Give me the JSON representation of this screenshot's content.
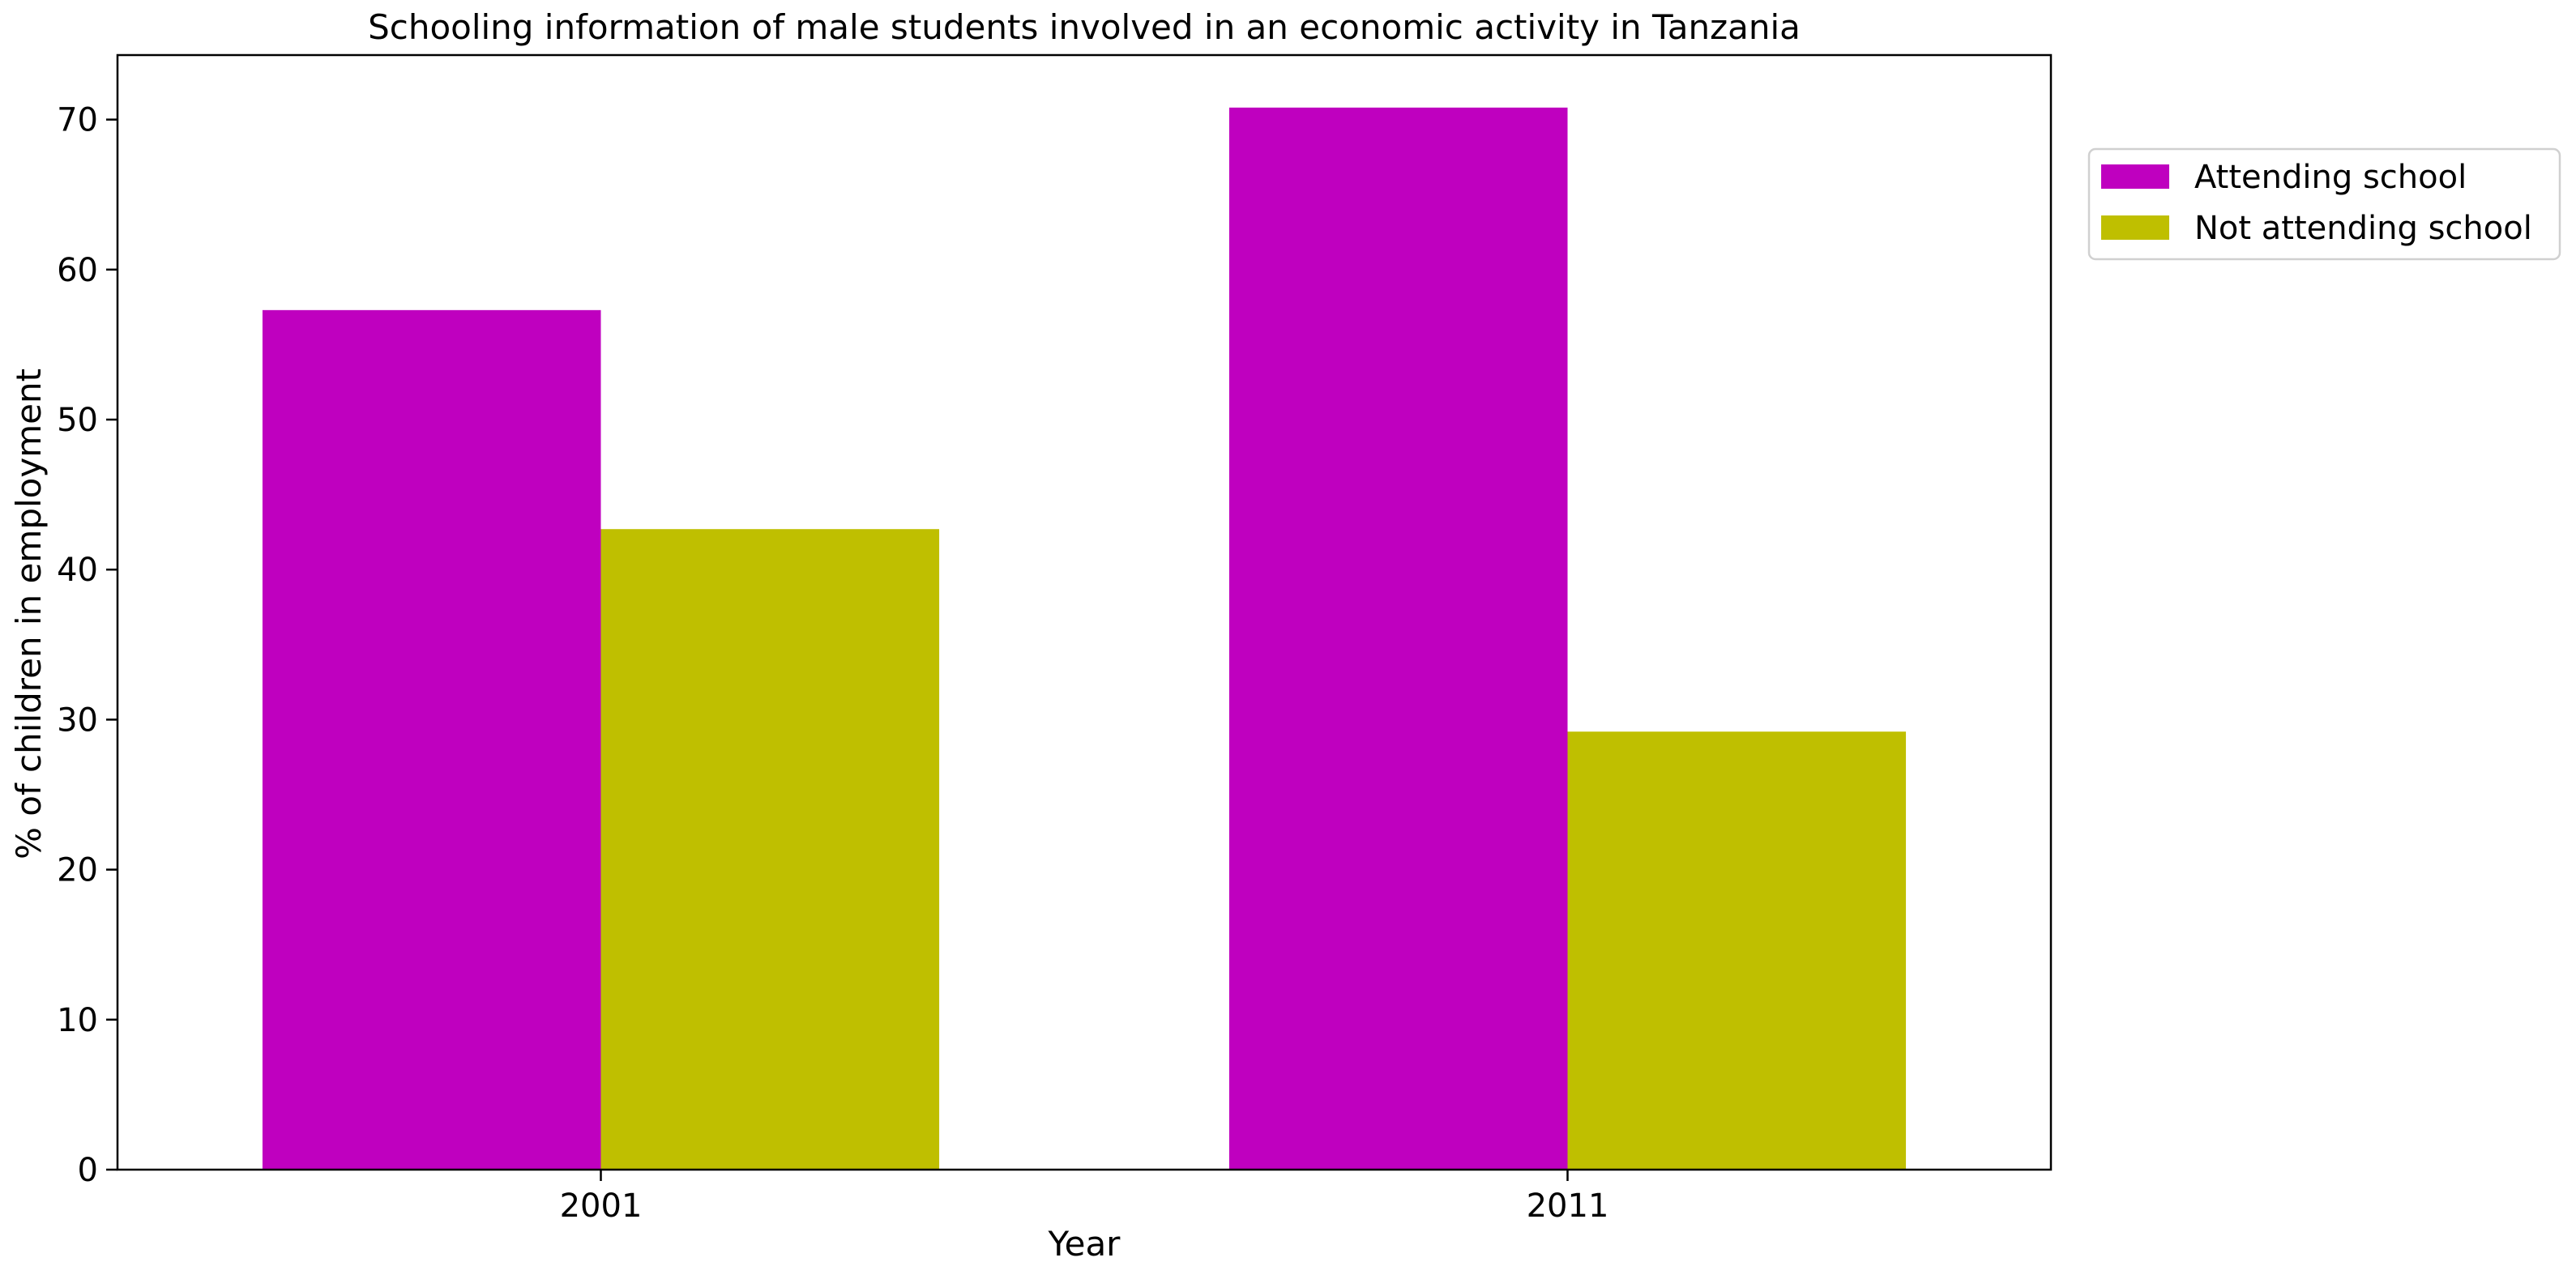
{
  "chart_data": {
    "type": "bar",
    "title": "Schooling information of male students involved in an economic activity in Tanzania",
    "xlabel": "Year",
    "ylabel": "% of children in employment",
    "categories": [
      "2001",
      "2011"
    ],
    "series": [
      {
        "name": "Attending school",
        "color": "#bf00bf",
        "values": [
          57.3,
          70.8
        ]
      },
      {
        "name": "Not attending school",
        "color": "#bfbf00",
        "values": [
          42.7,
          29.2
        ]
      }
    ],
    "ylim": [
      0,
      74.3
    ],
    "yticks": [
      0,
      10,
      20,
      30,
      40,
      50,
      60,
      70
    ],
    "grid": false,
    "legend_position": "upper-right-outside"
  }
}
